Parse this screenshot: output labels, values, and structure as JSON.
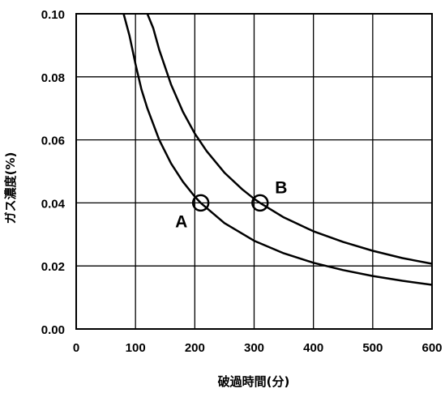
{
  "chart_data": {
    "type": "line",
    "xlabel": "破過時間(分)",
    "ylabel": "ガス濃度(%)",
    "xlim": [
      0,
      600
    ],
    "ylim": [
      0,
      0.1
    ],
    "x_ticks": [
      "0",
      "100",
      "200",
      "300",
      "400",
      "500",
      "600"
    ],
    "y_ticks": [
      "0.00",
      "0.02",
      "0.04",
      "0.06",
      "0.08",
      "0.10"
    ],
    "grid": true,
    "series": [
      {
        "x": [
          80,
          90,
          100,
          110,
          120,
          140,
          160,
          180,
          200,
          210,
          250,
          300,
          350,
          400,
          450,
          500,
          550,
          600
        ],
        "y": [
          0.1,
          0.093,
          0.084,
          0.076,
          0.07,
          0.06,
          0.0525,
          0.0467,
          0.042,
          0.04,
          0.0336,
          0.028,
          0.024,
          0.021,
          0.0187,
          0.0168,
          0.0153,
          0.014
        ]
      },
      {
        "x": [
          120,
          130,
          140,
          160,
          180,
          200,
          220,
          250,
          280,
          300,
          310,
          350,
          400,
          450,
          500,
          550,
          600
        ],
        "y": [
          0.1,
          0.0954,
          0.0886,
          0.0775,
          0.0689,
          0.062,
          0.0564,
          0.0496,
          0.0443,
          0.0413,
          0.04,
          0.0354,
          0.031,
          0.0276,
          0.0248,
          0.0225,
          0.0207
        ]
      }
    ],
    "points": [
      {
        "label": "A",
        "x": 210,
        "y": 0.04
      },
      {
        "label": "B",
        "x": 310,
        "y": 0.04
      }
    ]
  }
}
